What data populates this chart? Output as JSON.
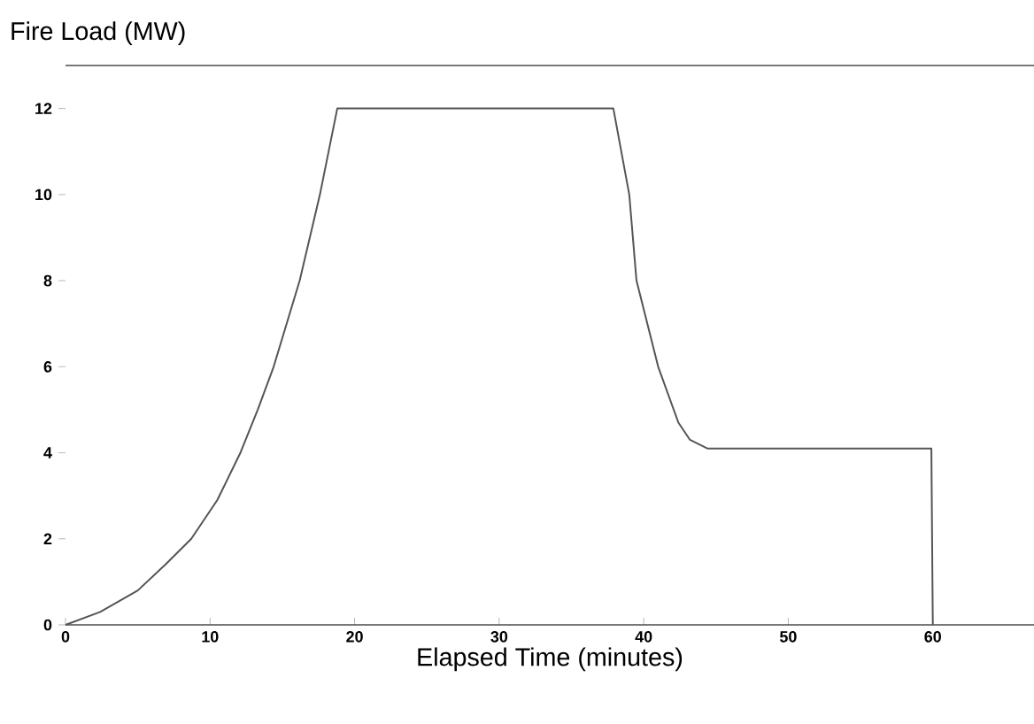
{
  "chart_data": {
    "type": "line",
    "ylabel": "Fire Load (MW)",
    "xlabel": "Elapsed Time (minutes)",
    "color": "#555555",
    "x": [
      0,
      2.4,
      5,
      6.9,
      8.7,
      10.5,
      12.1,
      13.3,
      14.4,
      15.3,
      16.2,
      17.6,
      18.8,
      37.9,
      39,
      39.5,
      41,
      42.4,
      43.2,
      44.4,
      59.9,
      60
    ],
    "values": [
      0,
      0.3,
      0.8,
      1.4,
      2,
      2.9,
      4,
      5,
      6,
      7,
      8,
      10,
      12,
      12,
      10,
      8,
      6,
      4.7,
      4.3,
      4.1,
      4.1,
      0
    ],
    "xlim": [
      0,
      67
    ],
    "ylim": [
      0,
      13
    ],
    "xticks": [
      0,
      10,
      20,
      30,
      40,
      50,
      60
    ],
    "yticks": [
      0,
      2,
      4,
      6,
      8,
      10,
      12
    ],
    "grid": false,
    "marker": "none",
    "line_style": "solid"
  }
}
